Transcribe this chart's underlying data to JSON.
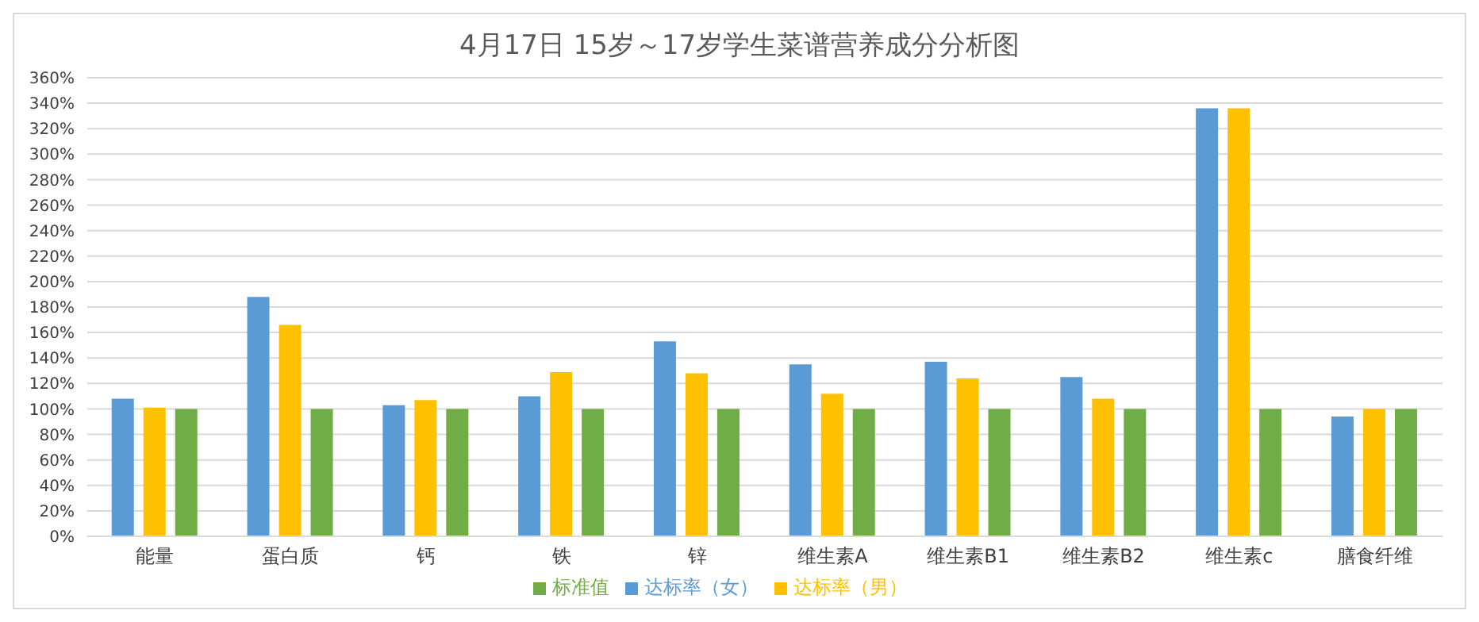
{
  "chart_data": {
    "type": "bar",
    "title": "4月17日 15岁～17岁学生菜谱营养成分分析图",
    "categories": [
      "能量",
      "蛋白质",
      "钙",
      "铁",
      "锌",
      "维生素A",
      "维生素B1",
      "维生素B2",
      "维生素c",
      "膳食纤维"
    ],
    "series": [
      {
        "name": "达标率（女）",
        "color": "#5b9bd5",
        "values": [
          108,
          188,
          103,
          110,
          153,
          135,
          137,
          125,
          336,
          94
        ]
      },
      {
        "name": "达标率（男）",
        "color": "#ffc000",
        "values": [
          101,
          166,
          107,
          129,
          128,
          112,
          124,
          108,
          336,
          100
        ]
      },
      {
        "name": "标准值",
        "color": "#70ad47",
        "values": [
          100,
          100,
          100,
          100,
          100,
          100,
          100,
          100,
          100,
          100
        ]
      }
    ],
    "ylim": [
      0,
      360
    ],
    "yticks": [
      {
        "value": 0,
        "label": "0%"
      },
      {
        "value": 20,
        "label": "20%"
      },
      {
        "value": 40,
        "label": "40%"
      },
      {
        "value": 60,
        "label": "60%"
      },
      {
        "value": 80,
        "label": "80%"
      },
      {
        "value": 100,
        "label": "100%"
      },
      {
        "value": 120,
        "label": "120%"
      },
      {
        "value": 140,
        "label": "140%"
      },
      {
        "value": 160,
        "label": "160%"
      },
      {
        "value": 180,
        "label": "180%"
      },
      {
        "value": 200,
        "label": "200%"
      },
      {
        "value": 220,
        "label": "220%"
      },
      {
        "value": 240,
        "label": "240%"
      },
      {
        "value": 260,
        "label": "260%"
      },
      {
        "value": 280,
        "label": "280%"
      },
      {
        "value": 300,
        "label": "300%"
      },
      {
        "value": 320,
        "label": "320%"
      },
      {
        "value": 340,
        "label": "340%"
      },
      {
        "value": 360,
        "label": "360%"
      }
    ],
    "grid": "y",
    "legend": "bottom"
  }
}
